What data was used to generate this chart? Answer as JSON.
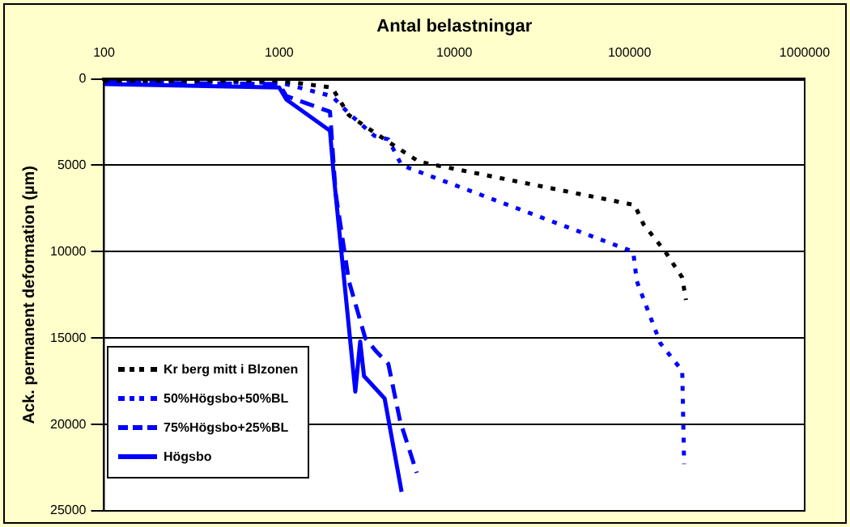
{
  "chart_data": {
    "type": "line",
    "xlabel": "Antal belastningar",
    "ylabel": "Ack. permanent deformation (µm)",
    "log": "x",
    "xlim": [
      100,
      1000000
    ],
    "xticks": [
      100,
      1000,
      10000,
      100000,
      1000000
    ],
    "ylim": [
      25000,
      0
    ],
    "yticks": [
      0,
      5000,
      10000,
      15000,
      20000,
      25000
    ],
    "grid": "y",
    "legend": "bottom left",
    "marker": "none",
    "series": [
      {
        "name": "Kr berg mitt i Blzonen",
        "color": "#000000",
        "line_style": "dotted",
        "x": [
          100,
          1000,
          2000,
          2500,
          4000,
          6300,
          107000,
          120000,
          160000,
          200000,
          210000
        ],
        "values": [
          100,
          100,
          500,
          2100,
          3500,
          4800,
          7300,
          8400,
          10000,
          11500,
          12800
        ]
      },
      {
        "name": "50%Högsbo+50%BL",
        "color": "#0000ff",
        "line_style": "dotted",
        "x": [
          100,
          1000,
          2000,
          2500,
          3500,
          4200,
          5000,
          105000,
          110000,
          150000,
          200000,
          205000
        ],
        "values": [
          200,
          200,
          1000,
          2000,
          3300,
          3500,
          5000,
          10000,
          11700,
          15300,
          16900,
          22300
        ]
      },
      {
        "name": "75%Högsbo+25%BL",
        "color": "#0000ff",
        "line_style": "dashed",
        "x": [
          100,
          1000,
          1100,
          1950,
          2100,
          2500,
          3100,
          3600,
          4200,
          4900,
          6100
        ],
        "values": [
          200,
          300,
          1000,
          1900,
          6600,
          11700,
          15000,
          15800,
          16500,
          19800,
          22800
        ]
      },
      {
        "name": "Högsbo",
        "color": "#0000ff",
        "line_style": "solid",
        "x": [
          100,
          1000,
          1100,
          1950,
          2050,
          2720,
          2900,
          3050,
          4000,
          5000
        ],
        "values": [
          300,
          500,
          1200,
          3000,
          5600,
          18100,
          15200,
          17200,
          18500,
          23900
        ]
      }
    ]
  }
}
